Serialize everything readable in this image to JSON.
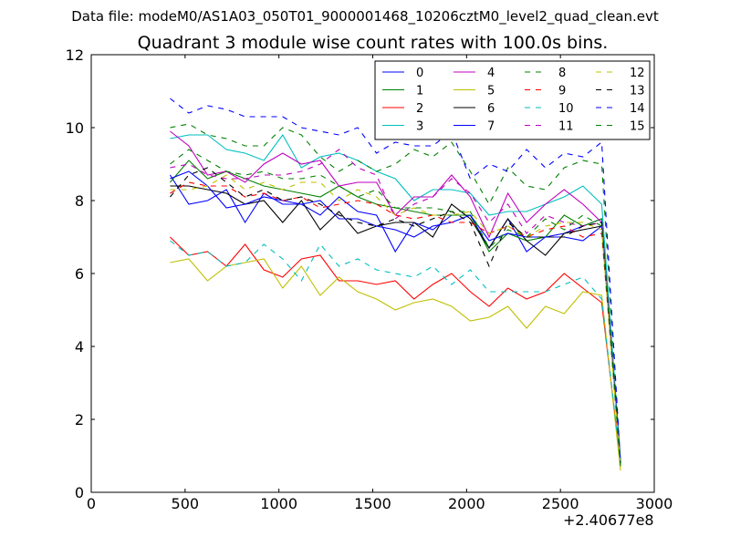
{
  "suptitle": "Data file: modeM0/AS1A03_050T01_9000001468_10206cztM0_level2_quad_clean.evt",
  "chart_data": {
    "type": "line",
    "title": "Quadrant 3 module wise count rates with 100.0s bins.",
    "xlabel": "",
    "ylabel": "",
    "x_offset_label": "+2.40677e8",
    "xlim": [
      0,
      3000
    ],
    "ylim": [
      0,
      12
    ],
    "xticks": [
      0,
      500,
      1000,
      1500,
      2000,
      2500,
      3000
    ],
    "yticks": [
      0,
      2,
      4,
      6,
      8,
      10,
      12
    ],
    "grid": false,
    "legend": {
      "placement": "top-right",
      "columns": 4
    },
    "x": [
      420,
      520,
      620,
      720,
      820,
      920,
      1020,
      1120,
      1220,
      1320,
      1420,
      1520,
      1620,
      1720,
      1820,
      1920,
      2020,
      2120,
      2220,
      2320,
      2420,
      2520,
      2620,
      2720,
      2820
    ],
    "series": [
      {
        "name": "0",
        "color": "#0000ff",
        "dash": "solid",
        "values": [
          8.7,
          7.9,
          8.0,
          8.3,
          7.4,
          8.2,
          7.9,
          7.9,
          7.6,
          8.1,
          7.7,
          7.6,
          6.6,
          7.4,
          7.2,
          7.6,
          7.6,
          6.7,
          7.5,
          6.6,
          7.0,
          7.1,
          7.3,
          7.5,
          0.8
        ]
      },
      {
        "name": "1",
        "color": "#008000",
        "dash": "solid",
        "values": [
          8.5,
          9.1,
          8.6,
          8.8,
          8.6,
          8.4,
          8.3,
          8.2,
          8.1,
          8.4,
          8.1,
          7.9,
          7.8,
          7.7,
          7.6,
          7.6,
          7.6,
          6.6,
          7.1,
          6.9,
          7.0,
          7.6,
          7.3,
          7.5,
          0.7
        ]
      },
      {
        "name": "2",
        "color": "#ff0000",
        "dash": "solid",
        "values": [
          7.0,
          6.5,
          6.6,
          6.2,
          6.8,
          6.1,
          5.9,
          6.4,
          6.5,
          5.8,
          5.8,
          5.7,
          5.8,
          5.3,
          5.7,
          6.0,
          5.5,
          5.1,
          5.6,
          5.3,
          5.5,
          6.0,
          5.6,
          5.2,
          0.8
        ]
      },
      {
        "name": "3",
        "color": "#00bfbf",
        "dash": "solid",
        "values": [
          9.7,
          9.8,
          9.8,
          9.4,
          9.3,
          9.1,
          9.8,
          8.9,
          9.2,
          9.3,
          9.1,
          8.8,
          8.6,
          8.0,
          8.3,
          8.3,
          8.2,
          7.6,
          7.7,
          7.7,
          7.9,
          8.1,
          8.4,
          7.9,
          0.9
        ]
      },
      {
        "name": "4",
        "color": "#bf00bf",
        "dash": "solid",
        "values": [
          9.9,
          9.5,
          8.7,
          8.8,
          8.5,
          9.0,
          9.3,
          9.0,
          9.1,
          8.4,
          8.5,
          8.5,
          7.6,
          8.1,
          8.1,
          8.7,
          8.1,
          7.0,
          8.2,
          7.4,
          7.9,
          8.3,
          7.9,
          7.4,
          0.8
        ]
      },
      {
        "name": "5",
        "color": "#bfbf00",
        "dash": "solid",
        "values": [
          6.3,
          6.4,
          5.8,
          6.2,
          6.3,
          6.4,
          5.6,
          6.2,
          5.4,
          5.9,
          5.5,
          5.3,
          5.0,
          5.2,
          5.3,
          5.1,
          4.7,
          4.8,
          5.1,
          4.5,
          5.1,
          4.9,
          5.5,
          5.4,
          0.6
        ]
      },
      {
        "name": "6",
        "color": "#000000",
        "dash": "solid",
        "values": [
          8.4,
          8.4,
          8.3,
          8.2,
          7.9,
          8.0,
          7.4,
          8.0,
          7.2,
          7.7,
          7.1,
          7.3,
          7.4,
          7.4,
          7.0,
          7.9,
          7.5,
          6.7,
          7.5,
          6.9,
          6.5,
          7.1,
          7.2,
          7.3,
          0.8
        ]
      },
      {
        "name": "7",
        "color": "#0000ff",
        "dash": "solid",
        "values": [
          8.6,
          8.8,
          8.4,
          7.8,
          7.9,
          8.1,
          8.0,
          7.9,
          8.0,
          7.5,
          7.5,
          7.3,
          7.2,
          7.0,
          7.3,
          7.4,
          7.6,
          6.9,
          7.1,
          7.0,
          7.0,
          7.0,
          6.9,
          7.3,
          0.8
        ]
      },
      {
        "name": "8",
        "color": "#008000",
        "dash": "dashed",
        "values": [
          10.0,
          10.1,
          9.8,
          9.7,
          9.5,
          9.5,
          10.0,
          9.8,
          9.2,
          8.8,
          9.1,
          8.8,
          9.0,
          9.4,
          9.2,
          9.6,
          8.8,
          7.9,
          8.9,
          8.4,
          8.3,
          8.9,
          9.1,
          9.0,
          0.8
        ]
      },
      {
        "name": "9",
        "color": "#ff0000",
        "dash": "dashed",
        "values": [
          8.2,
          8.5,
          8.4,
          8.4,
          8.1,
          8.2,
          8.0,
          8.1,
          7.8,
          7.9,
          8.0,
          7.9,
          7.6,
          7.5,
          7.6,
          7.4,
          7.4,
          7.1,
          7.3,
          7.0,
          7.2,
          7.3,
          7.0,
          7.1,
          0.8
        ]
      },
      {
        "name": "10",
        "color": "#00bfbf",
        "dash": "dashed",
        "values": [
          6.9,
          6.5,
          6.6,
          6.2,
          6.3,
          6.8,
          6.4,
          5.8,
          6.8,
          6.2,
          6.4,
          6.1,
          6.0,
          5.9,
          6.2,
          5.7,
          6.1,
          5.5,
          5.5,
          5.5,
          5.5,
          5.7,
          5.9,
          5.3,
          0.8
        ]
      },
      {
        "name": "11",
        "color": "#bf00bf",
        "dash": "dashed",
        "values": [
          8.9,
          9.0,
          8.7,
          8.6,
          8.6,
          8.7,
          8.7,
          8.8,
          9.0,
          9.4,
          8.9,
          8.7,
          7.5,
          7.9,
          8.1,
          8.6,
          8.2,
          7.4,
          7.9,
          7.1,
          7.6,
          7.4,
          7.3,
          7.4,
          0.8
        ]
      },
      {
        "name": "12",
        "color": "#bfbf00",
        "dash": "dashed",
        "values": [
          8.3,
          8.3,
          8.4,
          8.7,
          8.3,
          8.5,
          8.3,
          8.5,
          8.5,
          8.0,
          8.3,
          8.1,
          7.6,
          7.8,
          7.6,
          7.6,
          7.7,
          7.1,
          7.3,
          7.0,
          7.3,
          7.4,
          7.4,
          7.2,
          0.7
        ]
      },
      {
        "name": "13",
        "color": "#000000",
        "dash": "dashed",
        "values": [
          8.1,
          8.7,
          8.9,
          8.5,
          8.1,
          8.3,
          8.0,
          8.1,
          7.9,
          7.6,
          7.4,
          7.3,
          7.5,
          7.3,
          7.5,
          7.7,
          7.4,
          6.2,
          7.4,
          7.0,
          7.0,
          7.0,
          7.3,
          7.4,
          0.8
        ]
      },
      {
        "name": "14",
        "color": "#0000ff",
        "dash": "dashed",
        "values": [
          10.8,
          10.4,
          10.6,
          10.5,
          10.3,
          10.3,
          10.3,
          10.0,
          9.9,
          9.8,
          10.0,
          9.3,
          9.6,
          9.5,
          9.5,
          9.9,
          8.6,
          9.0,
          8.8,
          9.4,
          8.9,
          9.3,
          9.2,
          9.6,
          0.8
        ]
      },
      {
        "name": "15",
        "color": "#008000",
        "dash": "dashed",
        "values": [
          9.0,
          9.4,
          9.1,
          8.8,
          8.7,
          8.8,
          8.6,
          8.6,
          8.7,
          8.4,
          8.1,
          8.3,
          7.8,
          7.8,
          7.8,
          7.7,
          7.7,
          6.7,
          7.2,
          7.0,
          7.5,
          7.2,
          7.6,
          7.3,
          0.7
        ]
      }
    ]
  }
}
